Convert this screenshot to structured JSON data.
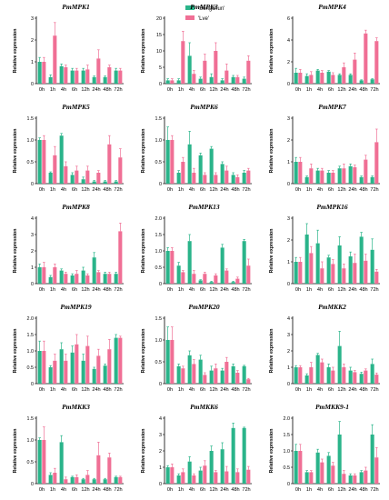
{
  "colors": {
    "songchun": "#2ab48a",
    "lve": "#f06f95"
  },
  "legend": [
    {
      "label": "'Songchun'",
      "color": "#2ab48a"
    },
    {
      "label": "'Lve'",
      "color": "#f06f95"
    }
  ],
  "chart_data": [
    {
      "type": "bar",
      "title": "PmMPK1",
      "ylabel": "Relative expression",
      "categories": [
        "0h",
        "1h",
        "4h",
        "6h",
        "12h",
        "24h",
        "48h",
        "72h"
      ],
      "ylim": [
        0,
        3
      ],
      "yticks": [
        0,
        1,
        2,
        3
      ],
      "series": [
        {
          "name": "'Songchun'",
          "values": [
            1.0,
            0.3,
            0.8,
            0.6,
            0.6,
            0.3,
            0.3,
            0.6
          ],
          "errors": [
            0.2,
            0.1,
            0.1,
            0.1,
            0.1,
            0.05,
            0.05,
            0.1
          ]
        },
        {
          "name": "'Lve'",
          "values": [
            1.0,
            2.2,
            0.75,
            0.6,
            0.65,
            1.15,
            0.75,
            0.6
          ],
          "errors": [
            0.2,
            0.6,
            0.1,
            0.1,
            0.2,
            0.4,
            0.1,
            0.1
          ]
        }
      ]
    },
    {
      "type": "bar",
      "title": "PmMPK3",
      "ylabel": "Relative expression",
      "categories": [
        "0h",
        "1h",
        "4h",
        "6h",
        "12h",
        "24h",
        "48h",
        "72h"
      ],
      "ylim": [
        0,
        20
      ],
      "yticks": [
        0,
        5,
        10,
        15,
        20
      ],
      "series": [
        {
          "name": "'Songchun'",
          "values": [
            1.0,
            1.0,
            8.5,
            1.5,
            2.0,
            1.0,
            2.0,
            1.5
          ],
          "errors": [
            0.5,
            0.5,
            4.0,
            0.5,
            1.0,
            0.5,
            0.5,
            0.5
          ]
        },
        {
          "name": "'Lve'",
          "values": [
            1.0,
            13.0,
            3.0,
            7.0,
            10.0,
            4.0,
            2.0,
            7.0
          ],
          "errors": [
            0.5,
            3.0,
            1.0,
            2.0,
            2.5,
            2.0,
            0.5,
            1.5
          ]
        }
      ]
    },
    {
      "type": "bar",
      "title": "PmMPK4",
      "ylabel": "Relative expression",
      "categories": [
        "0h",
        "1h",
        "4h",
        "6h",
        "12h",
        "24h",
        "48h",
        "72h"
      ],
      "ylim": [
        0,
        6
      ],
      "yticks": [
        0,
        2,
        4,
        6
      ],
      "series": [
        {
          "name": "'Songchun'",
          "values": [
            1.0,
            0.7,
            1.2,
            1.1,
            0.8,
            0.8,
            0.3,
            0.4
          ],
          "errors": [
            0.4,
            0.2,
            0.1,
            0.1,
            0.1,
            0.1,
            0.05,
            0.05
          ]
        },
        {
          "name": "'Lve'",
          "values": [
            1.0,
            0.8,
            1.0,
            0.8,
            1.5,
            2.2,
            4.6,
            3.9
          ],
          "errors": [
            0.3,
            0.3,
            0.2,
            0.2,
            0.4,
            0.6,
            0.3,
            0.3
          ]
        }
      ]
    },
    {
      "type": "bar",
      "title": "PmMPK5",
      "ylabel": "Relative expression",
      "categories": [
        "0h",
        "1h",
        "4h",
        "6h",
        "12h",
        "24h",
        "48h",
        "72h"
      ],
      "ylim": [
        0,
        1.5
      ],
      "yticks": [
        0,
        0.5,
        1.0,
        1.5
      ],
      "series": [
        {
          "name": "'Songchun'",
          "values": [
            1.0,
            0.25,
            1.1,
            0.2,
            0.1,
            0.05,
            0.05,
            0.05
          ],
          "errors": [
            0.05,
            0.02,
            0.05,
            0.05,
            0.05,
            0.02,
            0.02,
            0.02
          ]
        },
        {
          "name": "'Lve'",
          "values": [
            1.0,
            0.65,
            0.4,
            0.3,
            0.3,
            0.25,
            0.9,
            0.6
          ],
          "errors": [
            0.1,
            0.2,
            0.1,
            0.1,
            0.1,
            0.05,
            0.2,
            0.2
          ]
        }
      ]
    },
    {
      "type": "bar",
      "title": "PmMPK6",
      "ylabel": "Relative expression",
      "categories": [
        "0h",
        "1h",
        "4h",
        "6h",
        "12h",
        "24h",
        "48h",
        "72h"
      ],
      "ylim": [
        0,
        1.5
      ],
      "yticks": [
        0,
        0.5,
        1.0,
        1.5
      ],
      "series": [
        {
          "name": "'Songchun'",
          "values": [
            1.0,
            0.25,
            0.9,
            0.65,
            0.8,
            0.45,
            0.2,
            0.25
          ],
          "errors": [
            0.3,
            0.05,
            0.3,
            0.05,
            0.05,
            0.05,
            0.05,
            0.05
          ]
        },
        {
          "name": "'Lve'",
          "values": [
            1.0,
            0.5,
            0.25,
            0.2,
            0.2,
            0.3,
            0.15,
            0.3
          ],
          "errors": [
            0.1,
            0.1,
            0.1,
            0.05,
            0.05,
            0.1,
            0.05,
            0.05
          ]
        }
      ]
    },
    {
      "type": "bar",
      "title": "PmMPK7",
      "ylabel": "Relative expression",
      "categories": [
        "0h",
        "1h",
        "4h",
        "6h",
        "12h",
        "24h",
        "48h",
        "72h"
      ],
      "ylim": [
        0,
        3
      ],
      "yticks": [
        0,
        1,
        2,
        3
      ],
      "series": [
        {
          "name": "'Songchun'",
          "values": [
            1.0,
            0.3,
            0.6,
            0.5,
            0.7,
            0.8,
            0.3,
            0.3
          ],
          "errors": [
            0.2,
            0.05,
            0.1,
            0.1,
            0.1,
            0.1,
            0.05,
            0.05
          ]
        },
        {
          "name": "'Lve'",
          "values": [
            1.0,
            0.7,
            0.6,
            0.5,
            0.7,
            0.75,
            1.1,
            1.9
          ],
          "errors": [
            0.2,
            0.2,
            0.1,
            0.1,
            0.2,
            0.1,
            0.2,
            0.6
          ]
        }
      ]
    },
    {
      "type": "bar",
      "title": "PmMPK8",
      "ylabel": "Relative expression",
      "categories": [
        "0h",
        "1h",
        "4h",
        "6h",
        "12h",
        "24h",
        "48h",
        "72h"
      ],
      "ylim": [
        0,
        4
      ],
      "yticks": [
        0,
        1,
        2,
        3,
        4
      ],
      "series": [
        {
          "name": "'Songchun'",
          "values": [
            1.0,
            0.4,
            0.8,
            0.5,
            0.8,
            1.6,
            0.6,
            0.6
          ],
          "errors": [
            0.2,
            0.1,
            0.1,
            0.1,
            0.2,
            0.3,
            0.1,
            0.1
          ]
        },
        {
          "name": "'Lve'",
          "values": [
            1.0,
            1.0,
            0.6,
            0.6,
            0.5,
            0.7,
            0.6,
            3.2
          ],
          "errors": [
            0.3,
            0.2,
            0.1,
            0.2,
            0.1,
            0.1,
            0.1,
            0.5
          ]
        }
      ]
    },
    {
      "type": "bar",
      "title": "PmMPK13",
      "ylabel": "Relative expression",
      "categories": [
        "0h",
        "1h",
        "4h",
        "6h",
        "12h",
        "24h",
        "48h",
        "72h"
      ],
      "ylim": [
        0,
        2
      ],
      "yticks": [
        0,
        0.5,
        1.0,
        1.5,
        2.0
      ],
      "series": [
        {
          "name": "'Songchun'",
          "values": [
            1.0,
            0.55,
            1.3,
            0.1,
            0.05,
            1.1,
            0.05,
            1.3
          ],
          "errors": [
            0.1,
            0.1,
            0.2,
            0.02,
            0.02,
            0.1,
            0.02,
            0.05
          ]
        },
        {
          "name": "'Lve'",
          "values": [
            1.0,
            0.35,
            0.3,
            0.3,
            0.25,
            0.4,
            0.15,
            0.55
          ],
          "errors": [
            0.1,
            0.05,
            0.1,
            0.05,
            0.05,
            0.05,
            0.05,
            0.2
          ]
        }
      ]
    },
    {
      "type": "bar",
      "title": "PmMPK16",
      "ylabel": "Relative expression",
      "categories": [
        "0h",
        "1h",
        "4h",
        "6h",
        "12h",
        "24h",
        "48h",
        "72h"
      ],
      "ylim": [
        0,
        3
      ],
      "yticks": [
        0,
        1,
        2,
        3
      ],
      "series": [
        {
          "name": "'Songchun'",
          "values": [
            1.0,
            2.25,
            1.85,
            1.2,
            1.75,
            1.25,
            2.15,
            1.55
          ],
          "errors": [
            0.2,
            0.5,
            0.6,
            0.1,
            0.4,
            0.2,
            0.2,
            0.5
          ]
        },
        {
          "name": "'Lve'",
          "values": [
            1.0,
            1.4,
            0.7,
            0.9,
            0.7,
            0.95,
            1.05,
            0.55
          ],
          "errors": [
            0.2,
            0.3,
            0.3,
            0.2,
            0.2,
            0.4,
            0.3,
            0.1
          ]
        }
      ]
    },
    {
      "type": "bar",
      "title": "PmMPK19",
      "ylabel": "Relative expression",
      "categories": [
        "0h",
        "1h",
        "4h",
        "6h",
        "12h",
        "24h",
        "48h",
        "72h"
      ],
      "ylim": [
        0,
        2
      ],
      "yticks": [
        0,
        0.5,
        1.0,
        1.5,
        2.0
      ],
      "series": [
        {
          "name": "'Songchun'",
          "values": [
            1.0,
            0.5,
            1.05,
            0.95,
            0.7,
            0.45,
            0.55,
            1.4
          ],
          "errors": [
            0.3,
            0.05,
            0.2,
            0.2,
            0.2,
            0.05,
            0.05,
            0.1
          ]
        },
        {
          "name": "'Lve'",
          "values": [
            1.0,
            0.7,
            0.7,
            1.2,
            1.15,
            0.85,
            1.05,
            1.4
          ],
          "errors": [
            0.3,
            0.2,
            0.2,
            0.3,
            0.3,
            0.2,
            0.3,
            0.05
          ]
        }
      ]
    },
    {
      "type": "bar",
      "title": "PmMPK20",
      "ylabel": "Relative expression",
      "categories": [
        "0h",
        "1h",
        "4h",
        "6h",
        "12h",
        "24h",
        "48h",
        "72h"
      ],
      "ylim": [
        0,
        1.5
      ],
      "yticks": [
        0,
        0.5,
        1.0,
        1.5
      ],
      "series": [
        {
          "name": "'Songchun'",
          "values": [
            1.0,
            0.4,
            0.65,
            0.55,
            0.3,
            0.3,
            0.4,
            0.4
          ],
          "errors": [
            0.3,
            0.05,
            0.1,
            0.1,
            0.1,
            0.05,
            0.05,
            0.02
          ]
        },
        {
          "name": "'Lve'",
          "values": [
            1.0,
            0.35,
            0.45,
            0.2,
            0.35,
            0.5,
            0.25,
            0.1
          ],
          "errors": [
            0.3,
            0.05,
            0.1,
            0.05,
            0.1,
            0.1,
            0.05,
            0.02
          ]
        }
      ]
    },
    {
      "type": "bar",
      "title": "PmMKK2",
      "ylabel": "Relative expression",
      "categories": [
        "0h",
        "1h",
        "4h",
        "6h",
        "12h",
        "24h",
        "48h",
        "72h"
      ],
      "ylim": [
        0,
        4
      ],
      "yticks": [
        0,
        1,
        2,
        3,
        4
      ],
      "series": [
        {
          "name": "'Songchun'",
          "values": [
            1.0,
            0.5,
            1.75,
            1.0,
            2.3,
            0.8,
            0.6,
            1.2
          ],
          "errors": [
            0.1,
            0.1,
            0.1,
            0.2,
            0.9,
            0.2,
            0.1,
            0.3
          ]
        },
        {
          "name": "'Lve'",
          "values": [
            1.0,
            1.0,
            1.3,
            0.8,
            1.0,
            0.7,
            0.8,
            0.55
          ],
          "errors": [
            0.1,
            0.3,
            0.2,
            0.2,
            0.2,
            0.1,
            0.1,
            0.1
          ]
        }
      ]
    },
    {
      "type": "bar",
      "title": "PmMKK3",
      "ylabel": "Relative expression",
      "categories": [
        "0h",
        "1h",
        "4h",
        "6h",
        "12h",
        "24h",
        "48h",
        "72h"
      ],
      "ylim": [
        0,
        1.5
      ],
      "yticks": [
        0,
        0.5,
        1.0,
        1.5
      ],
      "series": [
        {
          "name": "'Songchun'",
          "values": [
            1.0,
            0.2,
            0.95,
            0.15,
            0.1,
            0.1,
            0.1,
            0.15
          ],
          "errors": [
            0.05,
            0.05,
            0.15,
            0.02,
            0.02,
            0.02,
            0.02,
            0.02
          ]
        },
        {
          "name": "'Lve'",
          "values": [
            1.0,
            0.25,
            0.1,
            0.15,
            0.2,
            0.65,
            0.6,
            0.15
          ],
          "errors": [
            0.3,
            0.1,
            0.05,
            0.05,
            0.1,
            0.3,
            0.1,
            0.02
          ]
        }
      ]
    },
    {
      "type": "bar",
      "title": "PmMKK6",
      "ylabel": "Relative expression",
      "categories": [
        "0h",
        "1h",
        "4h",
        "6h",
        "12h",
        "24h",
        "48h",
        "72h"
      ],
      "ylim": [
        0,
        4
      ],
      "yticks": [
        0,
        1,
        2,
        3,
        4
      ],
      "series": [
        {
          "name": "'Songchun'",
          "values": [
            1.0,
            0.5,
            1.35,
            0.8,
            2.0,
            2.1,
            3.4,
            3.4
          ],
          "errors": [
            0.1,
            0.1,
            0.3,
            0.2,
            0.3,
            0.4,
            0.3,
            0.05
          ]
        },
        {
          "name": "'Lve'",
          "values": [
            1.0,
            0.7,
            0.5,
            1.1,
            0.7,
            0.75,
            0.7,
            0.85
          ],
          "errors": [
            0.2,
            0.2,
            0.1,
            0.3,
            0.1,
            0.3,
            0.2,
            0.2
          ]
        }
      ]
    },
    {
      "type": "bar",
      "title": "PmMKK9-1",
      "ylabel": "Relative expression",
      "categories": [
        "0h",
        "1h",
        "4h",
        "6h",
        "12h",
        "24h",
        "48h",
        "72h"
      ],
      "ylim": [
        0,
        2
      ],
      "yticks": [
        0,
        0.5,
        1.0,
        1.5,
        2.0
      ],
      "series": [
        {
          "name": "'Songchun'",
          "values": [
            1.0,
            0.35,
            0.95,
            0.85,
            1.5,
            0.25,
            0.35,
            1.5
          ],
          "errors": [
            0.2,
            0.05,
            0.1,
            0.1,
            0.4,
            0.05,
            0.05,
            0.3
          ]
        },
        {
          "name": "'Lve'",
          "values": [
            1.0,
            0.35,
            0.65,
            0.55,
            0.3,
            0.25,
            0.4,
            0.8
          ],
          "errors": [
            0.2,
            0.05,
            0.1,
            0.1,
            0.1,
            0.05,
            0.1,
            0.3
          ]
        }
      ]
    }
  ]
}
